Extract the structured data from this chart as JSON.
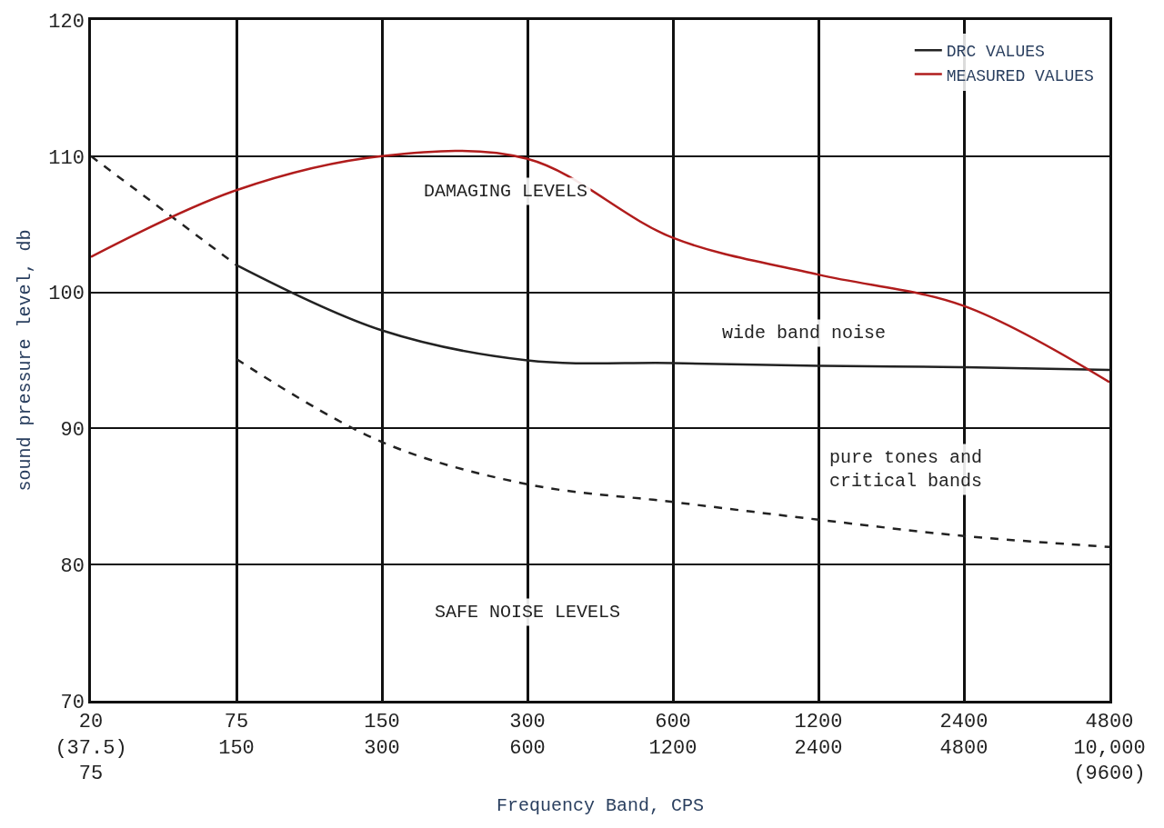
{
  "chart_data": {
    "type": "line",
    "xlabel": "Frequency Band, CPS",
    "ylabel": "sound pressure level, db",
    "categories": [
      "20\n(37.5)\n75",
      "75\n150",
      "150\n300",
      "300\n600",
      "600\n1200",
      "1200\n2400",
      "2400\n4800",
      "4800\n10,000\n(9600)"
    ],
    "ylim": [
      70,
      120
    ],
    "yticks": [
      70,
      80,
      90,
      100,
      110,
      120
    ],
    "grid": true,
    "legend": "top right",
    "marker": "none",
    "series": [
      {
        "color": "#222222",
        "line_style": "dashed",
        "values": [
          110,
          102,
          null,
          null,
          null,
          null,
          null,
          null
        ]
      },
      {
        "name": "DRC VALUES",
        "color": "#222222",
        "line_style": "solid",
        "values": [
          null,
          102,
          97.2,
          95,
          94.8,
          94.6,
          94.5,
          94.3
        ]
      },
      {
        "color": "#222222",
        "line_style": "dashed",
        "values": [
          null,
          95.1,
          89,
          85.9,
          84.6,
          83.3,
          82.1,
          81.3
        ]
      },
      {
        "name": "MEASURED VALUES",
        "color": "#b01c1c",
        "line_style": "solid",
        "values": [
          102.6,
          107.5,
          110,
          109.8,
          104,
          101.3,
          99,
          93.4
        ]
      }
    ],
    "annotations": [
      "DAMAGING LEVELS",
      "wide band noise",
      "pure tones and\ncritical bands",
      "SAFE NOISE LEVELS"
    ]
  }
}
